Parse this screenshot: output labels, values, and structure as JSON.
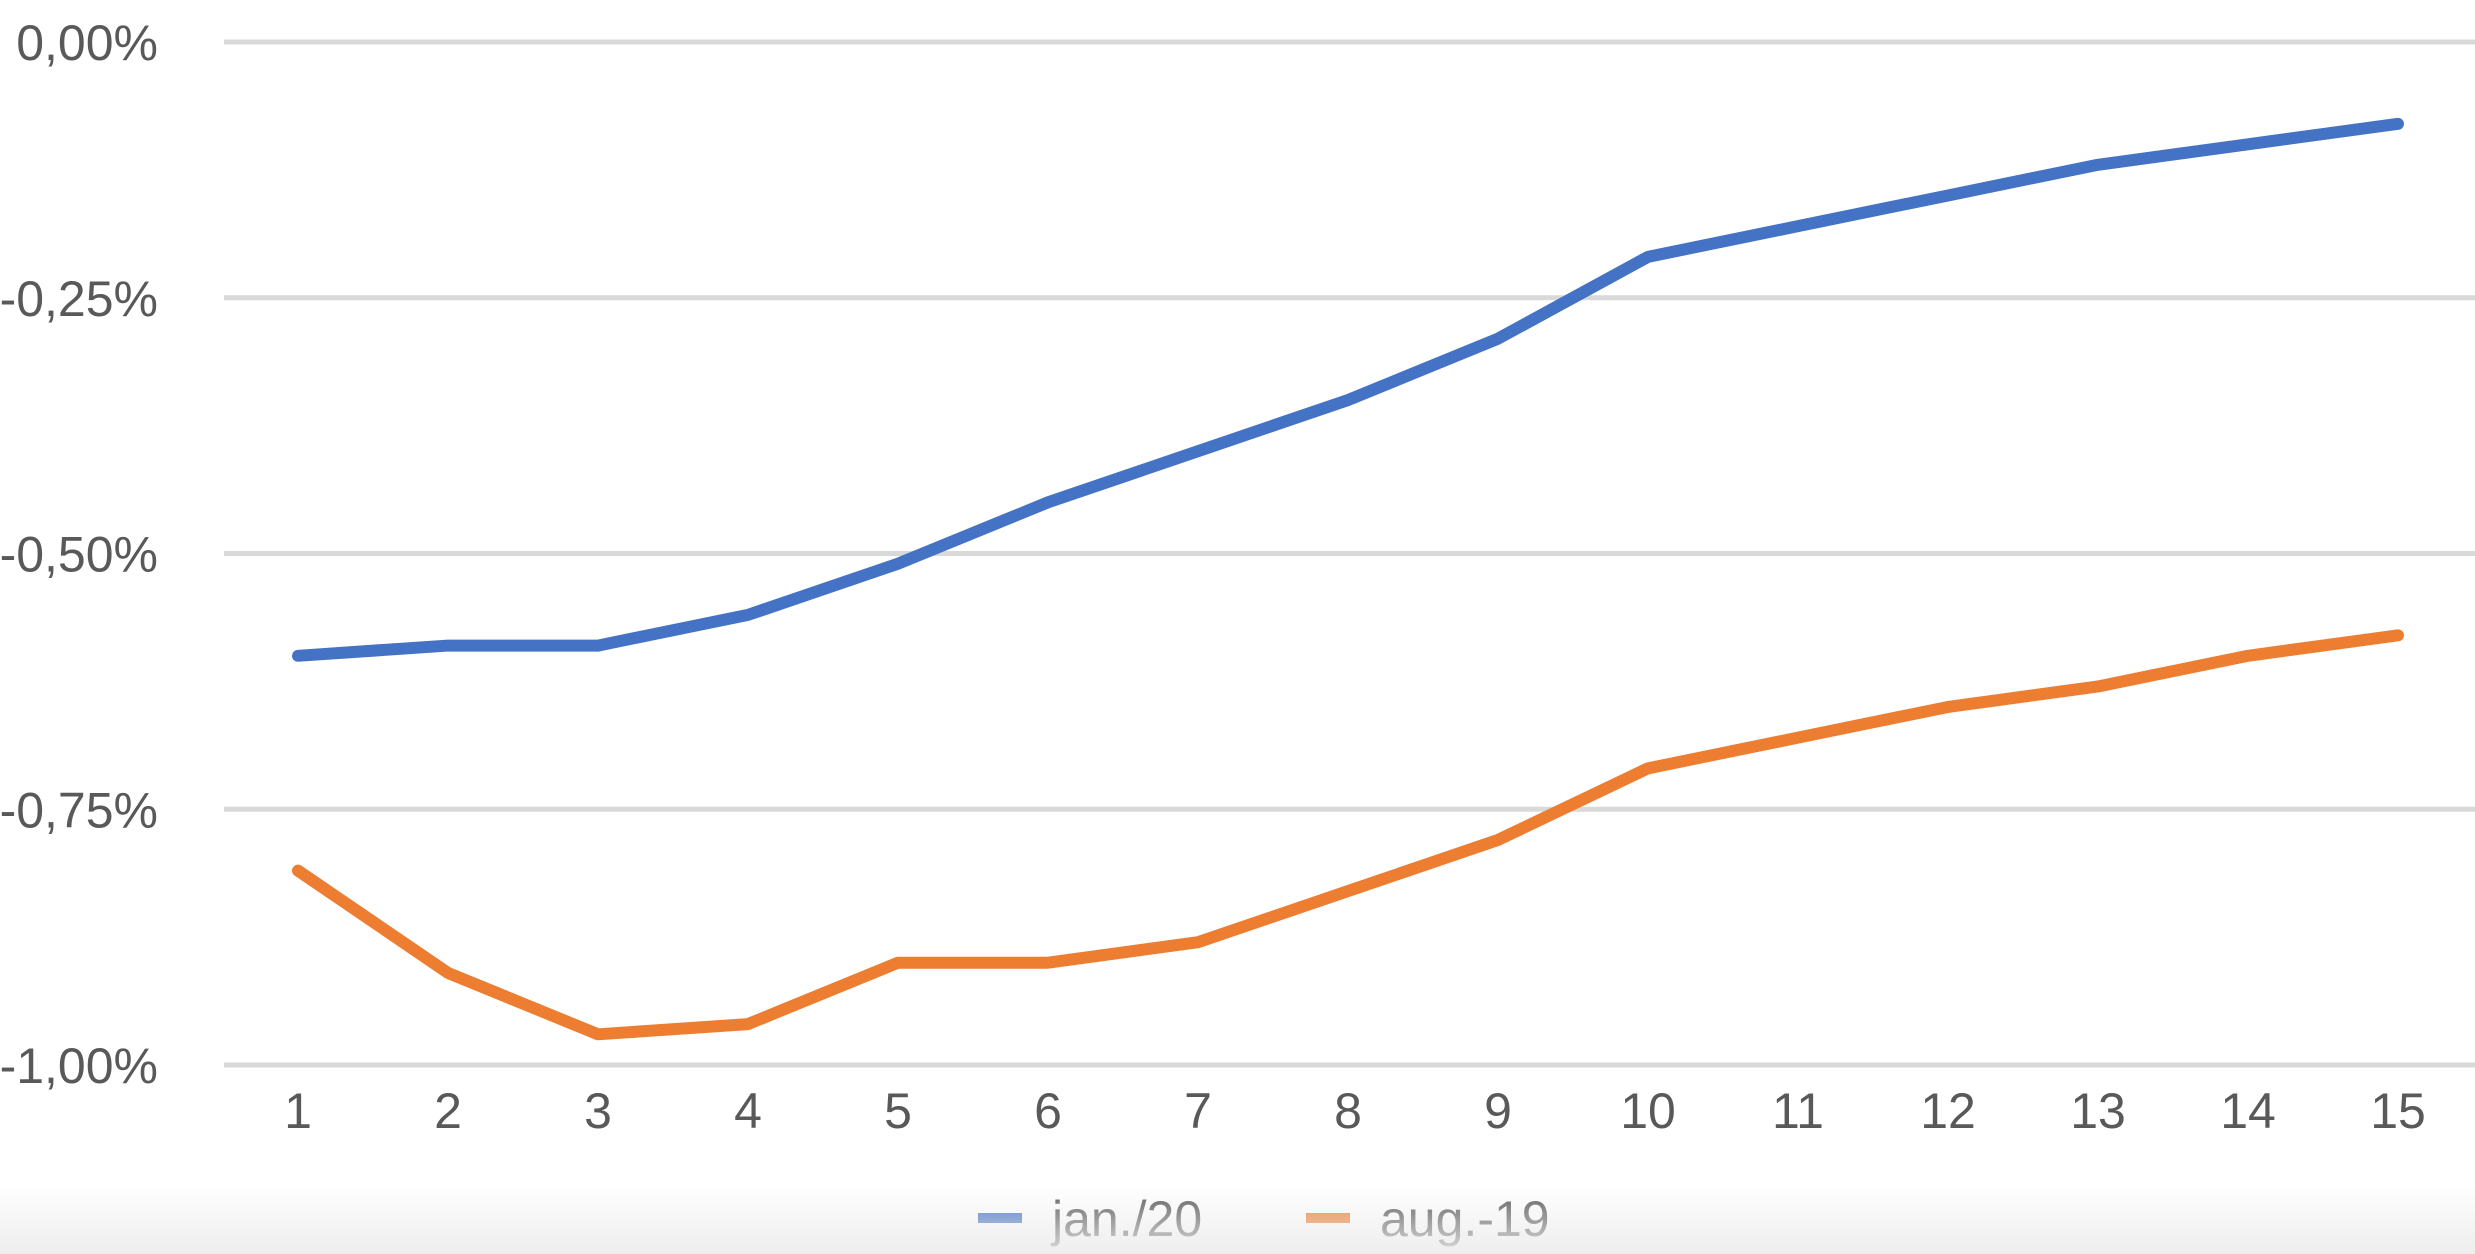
{
  "chart_data": {
    "type": "line",
    "title": "",
    "xlabel": "",
    "ylabel": "",
    "categories": [
      "1",
      "2",
      "3",
      "4",
      "5",
      "6",
      "7",
      "8",
      "9",
      "10",
      "11",
      "12",
      "13",
      "14",
      "15"
    ],
    "ylim": [
      -1.0,
      0.0
    ],
    "y_ticks": [
      "0,00%",
      "-0,25%",
      "-0,50%",
      "-0,75%",
      "-1,00%"
    ],
    "y_tick_values": [
      0.0,
      -0.25,
      -0.5,
      -0.75,
      -1.0
    ],
    "grid": true,
    "legend_position": "bottom",
    "series": [
      {
        "name": "jan./20",
        "color": "#4472C4",
        "values": [
          -0.6,
          -0.59,
          -0.59,
          -0.56,
          -0.51,
          -0.45,
          -0.4,
          -0.35,
          -0.29,
          -0.21,
          -0.18,
          -0.15,
          -0.12,
          -0.1,
          -0.08
        ]
      },
      {
        "name": "aug.-19",
        "color": "#ED7D31",
        "values": [
          -0.81,
          -0.91,
          -0.97,
          -0.96,
          -0.9,
          -0.9,
          -0.88,
          -0.83,
          -0.78,
          -0.71,
          -0.68,
          -0.65,
          -0.63,
          -0.6,
          -0.58
        ]
      }
    ],
    "gridline_color": "#D9D9D9"
  }
}
